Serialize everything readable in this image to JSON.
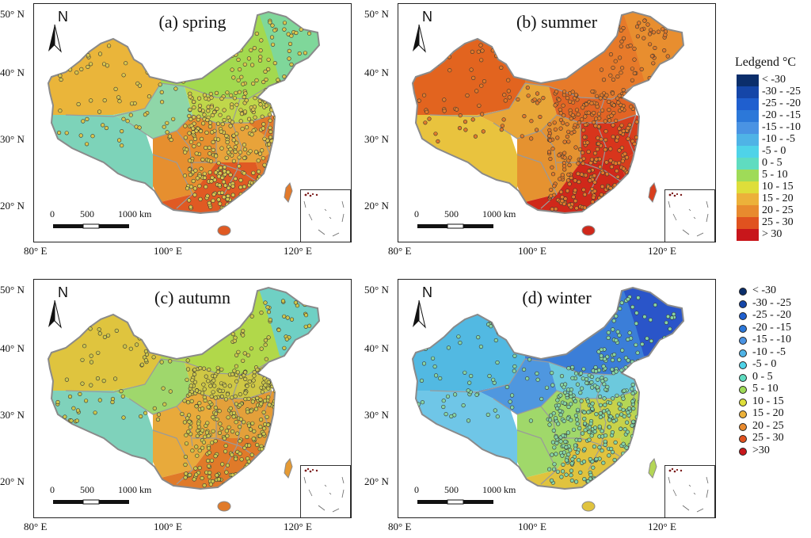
{
  "panels": [
    {
      "id": "spring",
      "title": "(a) spring",
      "fills": {
        "xj": "#eab53a",
        "tib": "#7dd3b9",
        "qh": "#8fd6a8",
        "inner": "#a3d94f",
        "ne": "#7fd79a",
        "north": "#c0d74a",
        "sw": "#e68f2f",
        "south": "#e05a23",
        "east": "#e27a2b",
        "ce": "#e8a33a"
      },
      "dot": "#d9c64e"
    },
    {
      "id": "summer",
      "title": "(b) summer",
      "fills": {
        "xj": "#e2641f",
        "tib": "#e9c33e",
        "qh": "#e8a638",
        "inner": "#e77a2a",
        "ne": "#e88e2f",
        "north": "#e26424",
        "sw": "#e59230",
        "south": "#d0281a",
        "east": "#d83e1d",
        "ce": "#d8351c"
      },
      "dot": "#e27a2a"
    },
    {
      "id": "autumn",
      "title": "(c) autumn",
      "fills": {
        "xj": "#dfc43e",
        "tib": "#7fd2bb",
        "qh": "#9fd76c",
        "inner": "#b1d84a",
        "ne": "#6fd0c4",
        "north": "#cfc744",
        "sw": "#e8aa3b",
        "south": "#e07a29",
        "east": "#e59a34",
        "ce": "#e3a03a"
      },
      "dot": "#cdc74d"
    },
    {
      "id": "winter",
      "title": "(d) winter",
      "fills": {
        "xj": "#52b9e2",
        "tib": "#6fc6e7",
        "qh": "#4f97df",
        "inner": "#3b7ed8",
        "ne": "#2a55c9",
        "north": "#6cc9dd",
        "sw": "#a0d86a",
        "south": "#e0c33e",
        "east": "#b4d656",
        "ce": "#c8d24a"
      },
      "dot": "#86d3a4"
    }
  ],
  "axes": {
    "y_labels": [
      "50° N",
      "40° N",
      "30° N",
      "20° N"
    ],
    "x_labels": [
      "80° E",
      "100° E",
      "120° E"
    ]
  },
  "north_label": "N",
  "scale": {
    "labels": [
      "0",
      "500",
      "1000 km"
    ]
  },
  "surface_legend": {
    "title": "Ledgend °C",
    "items": [
      {
        "label": "< -30",
        "color": "#0b2e6b"
      },
      {
        "label": "-30 - -25",
        "color": "#1546a8"
      },
      {
        "label": "-25 - -20",
        "color": "#1f5fcf"
      },
      {
        "label": "-20 - -15",
        "color": "#2c78d9"
      },
      {
        "label": "-15 - -10",
        "color": "#4a93e3"
      },
      {
        "label": "-10 - -5",
        "color": "#4fb3e6"
      },
      {
        "label": "-5 - 0",
        "color": "#4fd3e8"
      },
      {
        "label": "0 - 5",
        "color": "#5fdcc0"
      },
      {
        "label": "5 - 10",
        "color": "#9fdb58"
      },
      {
        "label": "10 - 15",
        "color": "#dede3a"
      },
      {
        "label": "15 - 20",
        "color": "#ecb13a"
      },
      {
        "label": "20 - 25",
        "color": "#e88a2e"
      },
      {
        "label": "25 - 30",
        "color": "#e0521f"
      },
      {
        "label": "> 30",
        "color": "#c8161b"
      }
    ]
  },
  "station_legend": {
    "items": [
      {
        "label": "< -30",
        "color": "#0b2e6b"
      },
      {
        "label": "-30 - -25",
        "color": "#1546a8"
      },
      {
        "label": "-25 - -20",
        "color": "#1f5fcf"
      },
      {
        "label": "-20 - -15",
        "color": "#2c78d9"
      },
      {
        "label": "-15 - -10",
        "color": "#4a93e3"
      },
      {
        "label": "-10 - -5",
        "color": "#4fb3e6"
      },
      {
        "label": "-5 - 0",
        "color": "#4fd3e8"
      },
      {
        "label": "0 - 5",
        "color": "#5fdcc0"
      },
      {
        "label": "5 - 10",
        "color": "#9fdb58"
      },
      {
        "label": "10 - 15",
        "color": "#dede3a"
      },
      {
        "label": "15 - 20",
        "color": "#ecb13a"
      },
      {
        "label": "20 - 25",
        "color": "#e88a2e"
      },
      {
        "label": "25 - 30",
        "color": "#e0521f"
      },
      {
        "label": ">30",
        "color": "#c8161b"
      }
    ]
  }
}
